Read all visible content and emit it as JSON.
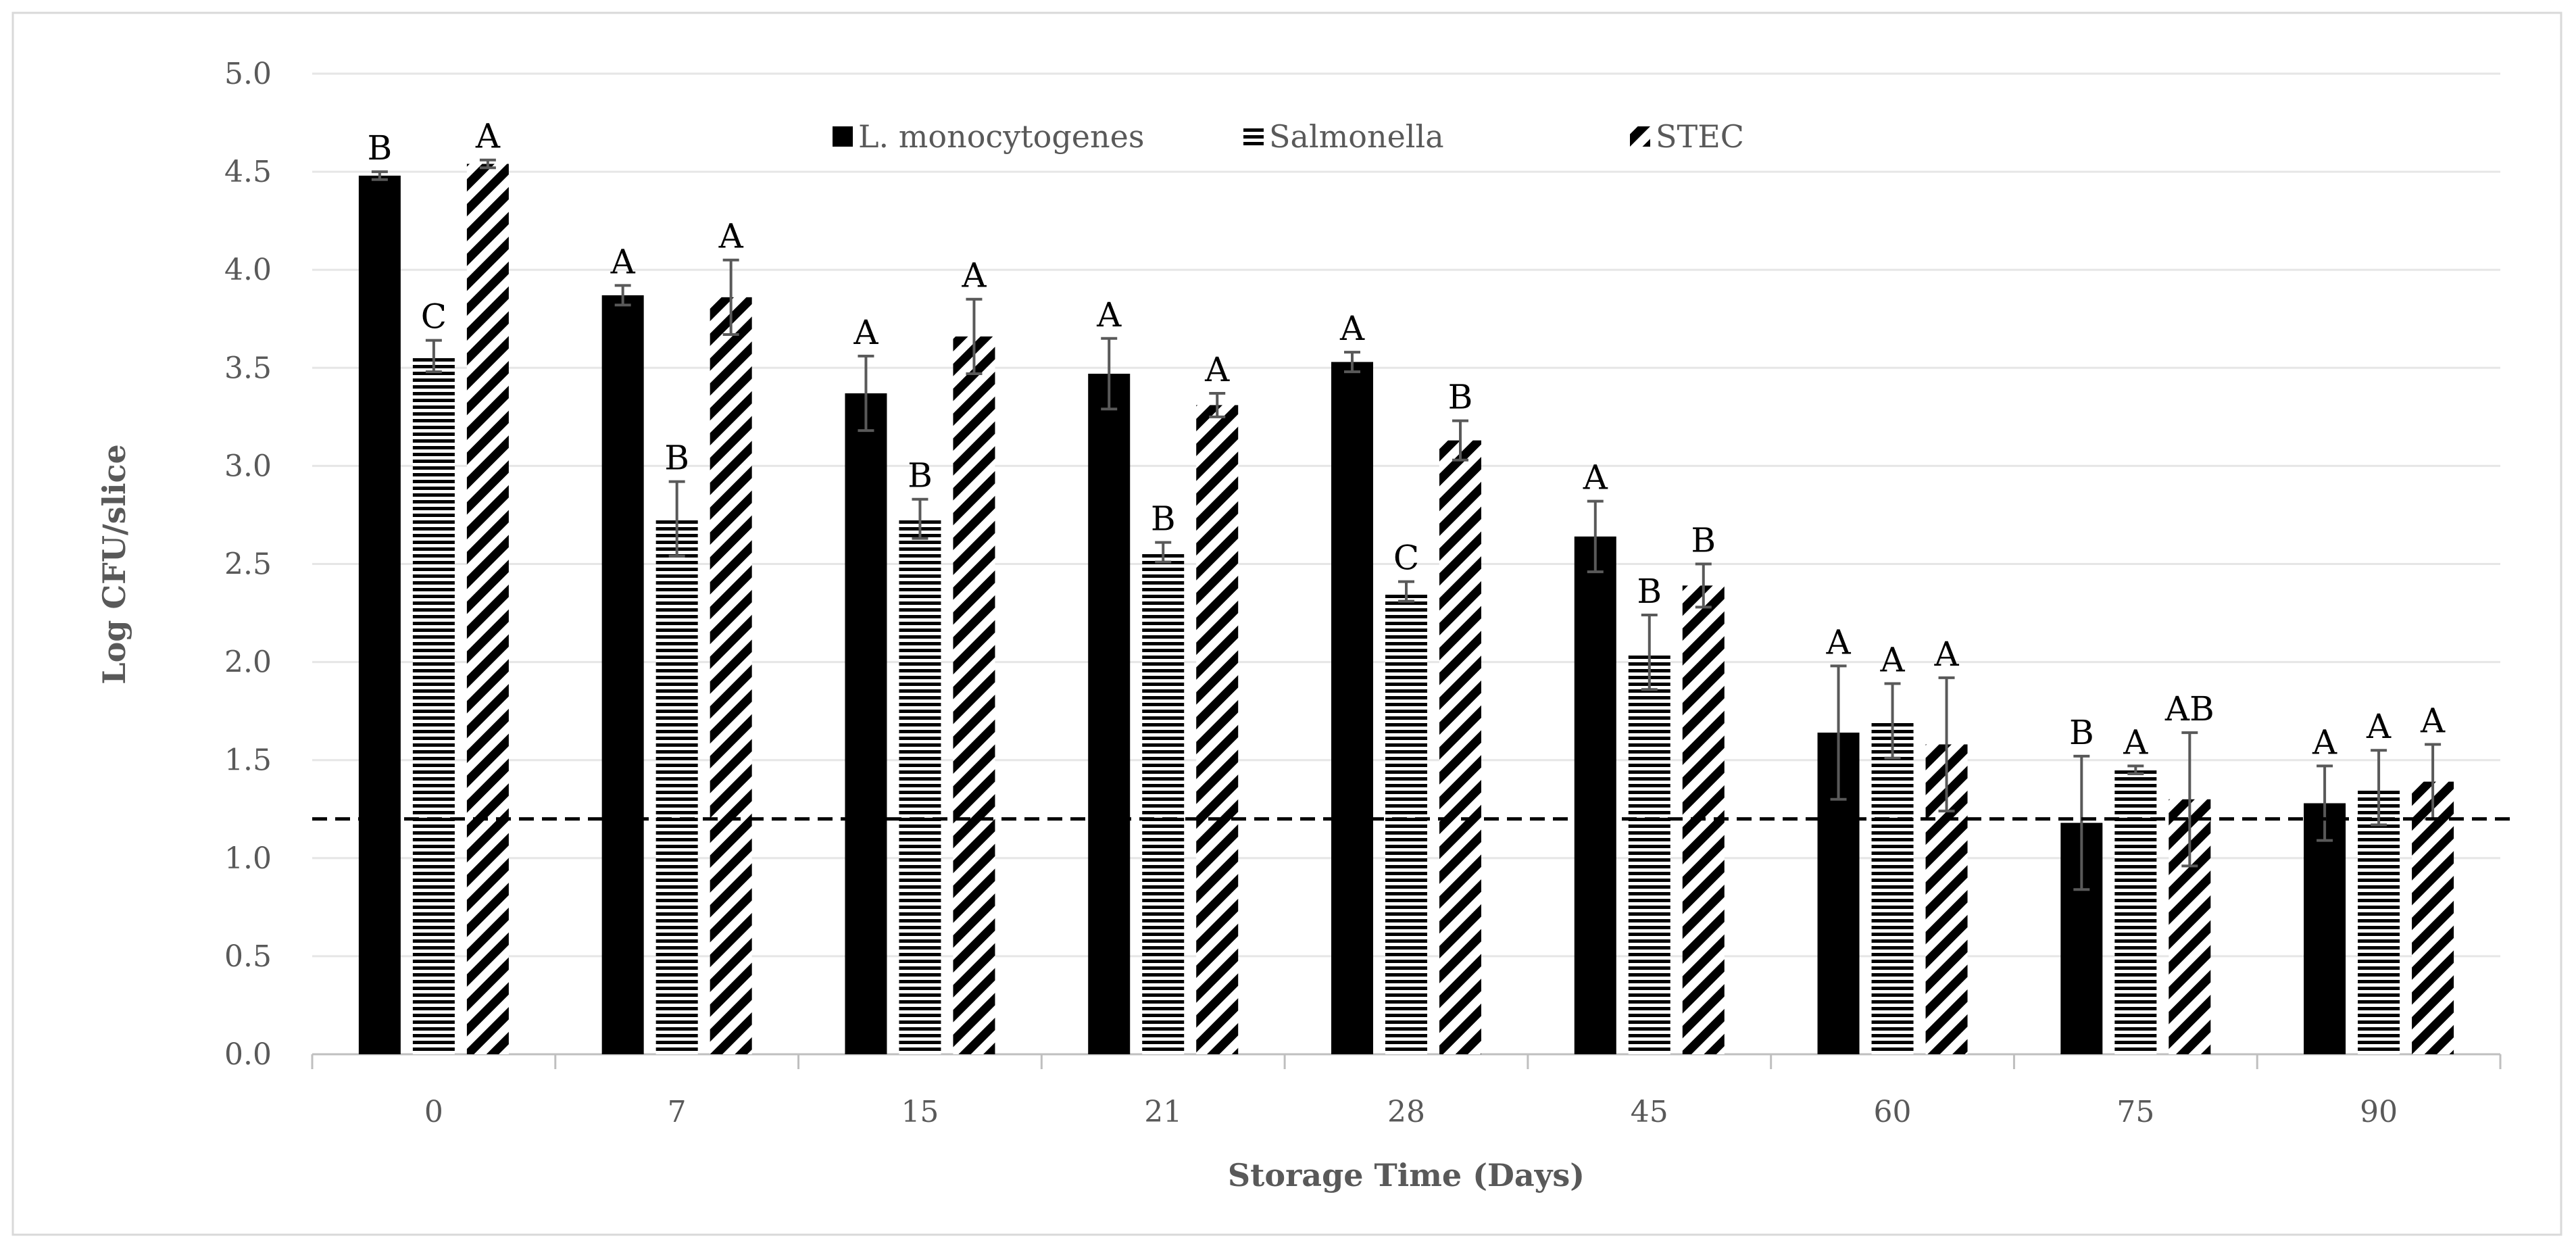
{
  "chart_data": {
    "type": "bar",
    "title": "",
    "xlabel": "Storage Time (Days)",
    "ylabel": "Log CFU/slice",
    "ylim": [
      0,
      5.0
    ],
    "yticks": [
      "0.0",
      "0.5",
      "1.0",
      "1.5",
      "2.0",
      "2.5",
      "3.0",
      "3.5",
      "4.0",
      "4.5",
      "5.0"
    ],
    "grid": true,
    "legend_position": "top-center",
    "categories": [
      "0",
      "7",
      "15",
      "21",
      "28",
      "45",
      "60",
      "75",
      "90"
    ],
    "reference_line": {
      "value": 1.2,
      "style": "dashed"
    },
    "series": [
      {
        "name": "L. monocytogenes",
        "pattern": "solid",
        "values": [
          4.48,
          3.87,
          3.37,
          3.47,
          3.53,
          2.64,
          1.64,
          1.18,
          1.28
        ],
        "errors": [
          0.02,
          0.05,
          0.19,
          0.18,
          0.05,
          0.18,
          0.34,
          0.34,
          0.19
        ],
        "letters": [
          "B",
          "A",
          "A",
          "A",
          "A",
          "A",
          "A",
          "B",
          "A"
        ]
      },
      {
        "name": "Salmonella",
        "pattern": "horizontal",
        "values": [
          3.56,
          2.73,
          2.73,
          2.56,
          2.36,
          2.05,
          1.7,
          1.45,
          1.36
        ],
        "errors": [
          0.08,
          0.19,
          0.1,
          0.05,
          0.05,
          0.19,
          0.19,
          0.02,
          0.19
        ],
        "letters": [
          "C",
          "B",
          "B",
          "B",
          "C",
          "B",
          "A",
          "A",
          "A"
        ]
      },
      {
        "name": "STEC",
        "pattern": "diagonal",
        "values": [
          4.54,
          3.86,
          3.66,
          3.31,
          3.13,
          2.39,
          1.58,
          1.3,
          1.39
        ],
        "errors": [
          0.02,
          0.19,
          0.19,
          0.06,
          0.1,
          0.11,
          0.34,
          0.34,
          0.19
        ],
        "letters": [
          "A",
          "A",
          "A",
          "A",
          "B",
          "B",
          "A",
          "AB",
          "A"
        ]
      }
    ]
  }
}
